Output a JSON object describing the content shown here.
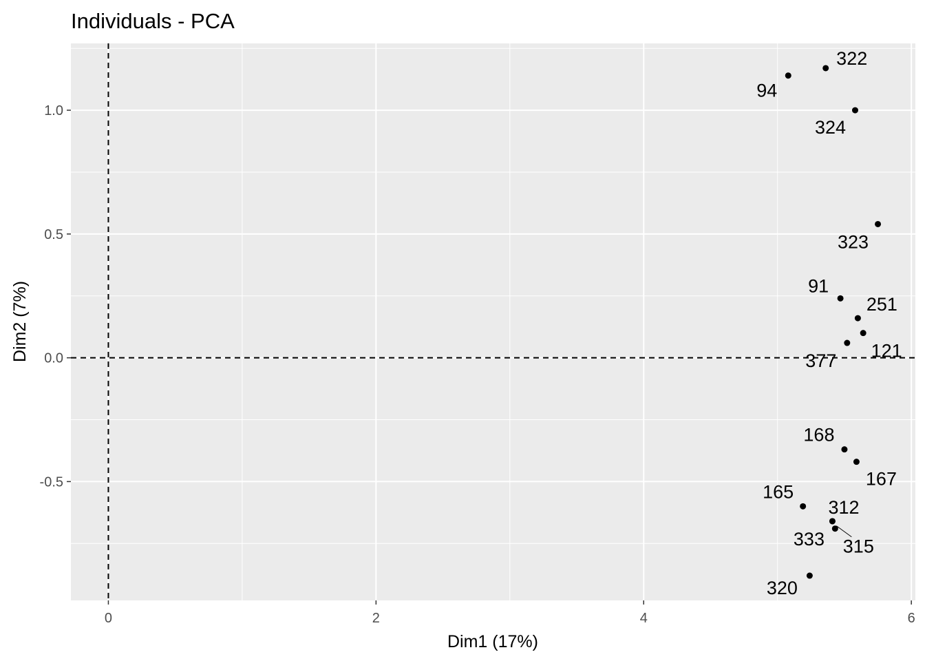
{
  "chart_data": {
    "type": "scatter",
    "title": "Individuals - PCA",
    "xlabel": "Dim1 (17%)",
    "ylabel": "Dim2 (7%)",
    "xlim": [
      -0.28,
      6.03
    ],
    "ylim": [
      -0.98,
      1.27
    ],
    "x_ticks": [
      0,
      2,
      4,
      6
    ],
    "x_tick_labels": [
      "0",
      "2",
      "4",
      "6"
    ],
    "y_ticks": [
      -0.5,
      0.0,
      0.5,
      1.0
    ],
    "y_tick_labels": [
      "-0.5",
      "0.0",
      "0.5",
      "1.0"
    ],
    "reference_lines": {
      "x": 0,
      "y": 0,
      "style": "dashed"
    },
    "grid": true,
    "panel_color": "#ebebeb",
    "grid_color": "#ffffff",
    "point_color": "#000000",
    "points": [
      {
        "label": "322",
        "x": 5.36,
        "y": 1.17
      },
      {
        "label": "94",
        "x": 5.08,
        "y": 1.14
      },
      {
        "label": "324",
        "x": 5.58,
        "y": 1.0
      },
      {
        "label": "323",
        "x": 5.75,
        "y": 0.54
      },
      {
        "label": "91",
        "x": 5.47,
        "y": 0.24
      },
      {
        "label": "251",
        "x": 5.6,
        "y": 0.16
      },
      {
        "label": "121",
        "x": 5.64,
        "y": 0.1
      },
      {
        "label": "377",
        "x": 5.52,
        "y": 0.06
      },
      {
        "label": "168",
        "x": 5.5,
        "y": -0.37
      },
      {
        "label": "167",
        "x": 5.59,
        "y": -0.42
      },
      {
        "label": "165",
        "x": 5.19,
        "y": -0.6
      },
      {
        "label": "312",
        "x": 5.41,
        "y": -0.66
      },
      {
        "label": "315",
        "x": 5.43,
        "y": -0.69
      },
      {
        "label": "333",
        "x": 5.41,
        "y": -0.66
      },
      {
        "label": "320",
        "x": 5.24,
        "y": -0.88
      }
    ]
  }
}
